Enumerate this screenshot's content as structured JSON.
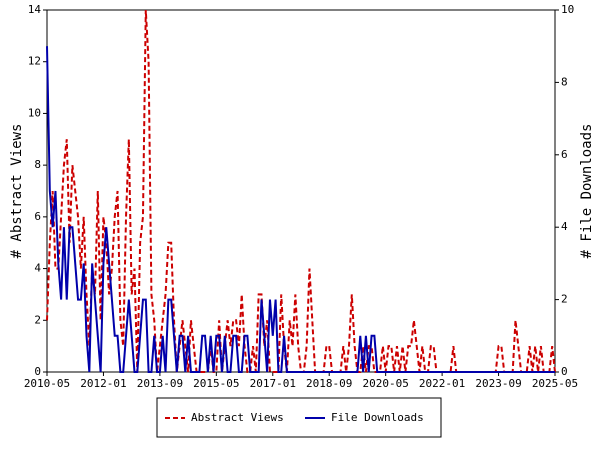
{
  "chart_data": {
    "type": "line",
    "y_label": "# Abstract Views",
    "y2_label": "# File Downloads",
    "categories": [
      "2010-05",
      null,
      null,
      null,
      null,
      null,
      null,
      null,
      null,
      null,
      null,
      null,
      null,
      null,
      null,
      null,
      null,
      null,
      null,
      null,
      "2012-01",
      null,
      null,
      null,
      null,
      null,
      null,
      null,
      null,
      null,
      null,
      null,
      null,
      null,
      null,
      null,
      null,
      null,
      null,
      null,
      "2013-09",
      null,
      null,
      null,
      null,
      null,
      null,
      null,
      null,
      null,
      null,
      null,
      null,
      null,
      null,
      null,
      null,
      null,
      null,
      null,
      "2015-05",
      null,
      null,
      null,
      null,
      null,
      null,
      null,
      null,
      null,
      null,
      null,
      null,
      null,
      null,
      null,
      null,
      null,
      null,
      null,
      "2017-01",
      null,
      null,
      null,
      null,
      null,
      null,
      null,
      null,
      null,
      null,
      null,
      null,
      null,
      null,
      null,
      null,
      null,
      null,
      null,
      "2018-09",
      null,
      null,
      null,
      null,
      null,
      null,
      null,
      null,
      null,
      null,
      null,
      null,
      null,
      null,
      null,
      null,
      null,
      null,
      null,
      "2020-05",
      null,
      null,
      null,
      null,
      null,
      null,
      null,
      null,
      null,
      null,
      null,
      null,
      null,
      null,
      null,
      null,
      null,
      null,
      null,
      "2022-01",
      null,
      null,
      null,
      null,
      null,
      null,
      null,
      null,
      null,
      null,
      null,
      null,
      null,
      null,
      null,
      null,
      null,
      null,
      null,
      "2023-09",
      null,
      null,
      null,
      null,
      null,
      null,
      null,
      null,
      null,
      null,
      null,
      null,
      null,
      null,
      null,
      null,
      null,
      null,
      null,
      "2025-05"
    ],
    "series": [
      {
        "name": "Abstract Views",
        "color": "#cc0000",
        "linestyle": "dashed",
        "axis": "y",
        "values": [
          2,
          5,
          7,
          4,
          4,
          6,
          8,
          9,
          5,
          8,
          7,
          6,
          4,
          6,
          3,
          1,
          4,
          3,
          7,
          2,
          6,
          5,
          3,
          4,
          6,
          7,
          2,
          1,
          6,
          9,
          3,
          4,
          0,
          5,
          6,
          14,
          12,
          3,
          2,
          0,
          1,
          2,
          3,
          5,
          5,
          2,
          0,
          1,
          2,
          1,
          0,
          2,
          1,
          0,
          0,
          0,
          0,
          0,
          1,
          0,
          0,
          2,
          0,
          1,
          2,
          1,
          2,
          2,
          1,
          3,
          1,
          0,
          0,
          1,
          0,
          3,
          3,
          1,
          2,
          0,
          0,
          0,
          0,
          3,
          1,
          0,
          2,
          1,
          3,
          1,
          0,
          0,
          1,
          4,
          2,
          0,
          0,
          0,
          0,
          1,
          1,
          0,
          0,
          0,
          0,
          1,
          0,
          1,
          3,
          1,
          0,
          0,
          1,
          0,
          1,
          1,
          0,
          0,
          0,
          1,
          0,
          1,
          1,
          0,
          1,
          0,
          1,
          0,
          1,
          1,
          2,
          1,
          0,
          1,
          0,
          0,
          1,
          1,
          0,
          0,
          0,
          0,
          0,
          0,
          1,
          0,
          0,
          0,
          0,
          0,
          0,
          0,
          0,
          0,
          0,
          0,
          0,
          0,
          0,
          0,
          1,
          1,
          0,
          0,
          0,
          0,
          2,
          1,
          0,
          0,
          0,
          1,
          0,
          1,
          0,
          1,
          0,
          0,
          0,
          1,
          0
        ]
      },
      {
        "name": "File Downloads",
        "color": "#0000aa",
        "linestyle": "solid",
        "axis": "y2",
        "values": [
          9,
          5,
          4,
          5,
          3,
          2,
          4,
          2,
          4,
          4,
          3,
          2,
          2,
          3,
          1,
          0,
          3,
          2,
          1,
          0,
          3,
          4,
          3,
          2,
          1,
          1,
          0,
          0,
          1,
          2,
          1,
          0,
          0,
          1,
          2,
          2,
          0,
          0,
          1,
          0,
          0,
          1,
          0,
          2,
          2,
          1,
          0,
          1,
          1,
          0,
          1,
          0,
          0,
          0,
          0,
          1,
          1,
          0,
          1,
          0,
          1,
          1,
          0,
          1,
          0,
          0,
          1,
          1,
          0,
          0,
          1,
          1,
          0,
          0,
          0,
          0,
          2,
          1,
          0,
          2,
          1,
          2,
          0,
          0,
          1,
          0,
          0,
          0,
          0,
          0,
          0,
          0,
          0,
          0,
          0,
          0,
          0,
          0,
          0,
          0,
          0,
          0,
          0,
          0,
          0,
          0,
          0,
          0,
          0,
          0,
          0,
          1,
          0,
          1,
          0,
          1,
          1,
          0,
          0,
          0,
          0,
          0,
          0,
          0,
          0,
          0,
          0,
          0,
          0,
          0,
          0,
          0,
          0,
          0,
          0,
          0,
          0,
          0,
          0,
          0,
          0,
          0,
          0,
          0,
          0,
          0,
          0,
          0,
          0,
          0,
          0,
          0,
          0,
          0,
          0,
          0,
          0,
          0,
          0,
          0,
          0,
          0,
          0,
          0,
          0,
          0,
          0,
          0,
          0,
          0,
          0,
          0,
          0,
          0,
          0,
          0,
          0,
          0,
          0,
          0,
          0
        ]
      }
    ],
    "ylim": [
      0,
      14
    ],
    "yticks": [
      0,
      2,
      4,
      6,
      8,
      10,
      12,
      14
    ],
    "y2lim": [
      0,
      10
    ],
    "y2ticks": [
      0,
      2,
      4,
      6,
      8,
      10
    ],
    "legend": "bottom"
  }
}
